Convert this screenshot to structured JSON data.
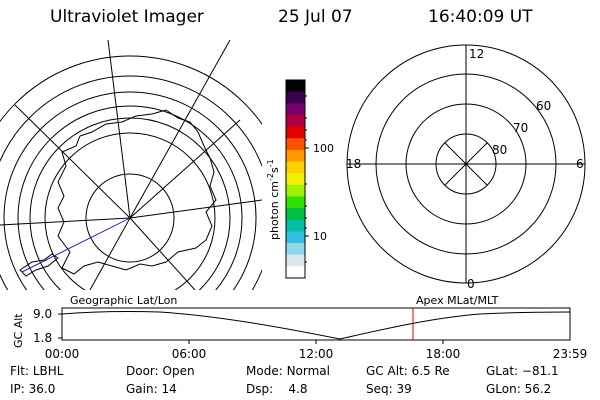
{
  "header": {
    "title": "Ultraviolet Imager",
    "date": "25 Jul 07",
    "time": "16:40:09 UT"
  },
  "colorbar": {
    "unit": "photon cm⁻²s⁻¹",
    "unit_base": "photon cm",
    "unit_exp1": "-2",
    "unit_mid": "s",
    "unit_exp2": "-1",
    "ticks": [
      "100",
      "10"
    ],
    "colors": [
      "#000000",
      "#3a0050",
      "#7a0070",
      "#b00040",
      "#e00000",
      "#ff5000",
      "#ff9800",
      "#ffd000",
      "#f0f000",
      "#a0f000",
      "#30e000",
      "#00c040",
      "#00c0a0",
      "#30c0e0",
      "#90d8e8",
      "#d8e8ee",
      "#ffffff"
    ]
  },
  "mlt_grid": {
    "hour_labels": {
      "top": "12",
      "bottom": "0",
      "left": "18",
      "right": "6"
    },
    "lat_labels": [
      "60",
      "70",
      "80"
    ]
  },
  "timeline": {
    "left_label": "Geographic Lat/Lon",
    "right_label": "Apex MLat/MLT",
    "axis_title": "GC Alt",
    "y_ticks": [
      "9.0",
      "1.8"
    ],
    "x_ticks": [
      "00:00",
      "06:00",
      "12:00",
      "18:00",
      "23:59"
    ],
    "current_marker_color": "#e00000"
  },
  "status": {
    "row1": [
      {
        "key": "Flt: ",
        "val": "LBHL"
      },
      {
        "key": "Door: ",
        "val": "Open"
      },
      {
        "key": "Mode: ",
        "val": "Normal"
      },
      {
        "key": "GC Alt: ",
        "val": "6.5 Re"
      },
      {
        "key": "GLat: ",
        "val": "−81.1"
      }
    ],
    "row2": [
      {
        "key": "IP: ",
        "val": "36.0"
      },
      {
        "key": "Gain: ",
        "val": "14"
      },
      {
        "key": "Dsp: ",
        "val": "   4.8"
      },
      {
        "key": "Seq: ",
        "val": "39"
      },
      {
        "key": "GLon: ",
        "val": "56.2"
      }
    ]
  }
}
